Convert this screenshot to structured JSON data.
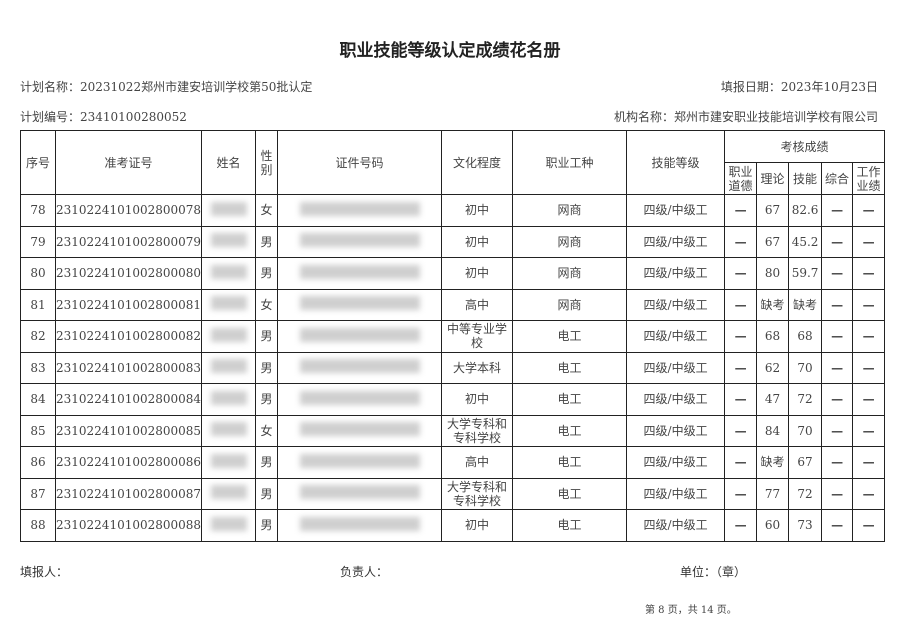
{
  "title": "职业技能等级认定成绩花名册",
  "plan_name": "计划名称：20231022郑州市建安培训学校第50批认定",
  "fill_date": "填报日期：2023年10月23日",
  "plan_no": "计划编号：23410100280052",
  "org_name": "机构名称：郑州市建安职业技能培训学校有限公司",
  "headers": {
    "seq": "序号",
    "exam_no": "准考证号",
    "name": "姓名",
    "gender": "性别",
    "id_no": "证件号码",
    "education": "文化程度",
    "occupation": "职业工种",
    "level": "技能等级",
    "scores": "考核成绩",
    "ethics": "职业道德",
    "theory": "理论",
    "skill": "技能",
    "overall": "综合",
    "performance": "工作业绩"
  },
  "rows": [
    {
      "seq": "78",
      "exam_no": "2310224101002800078",
      "gender": "女",
      "education": "初中",
      "occupation": "网商",
      "level": "四级/中级工",
      "ethics": "—",
      "theory": "67",
      "skill": "82.6",
      "overall": "—",
      "performance": "—"
    },
    {
      "seq": "79",
      "exam_no": "2310224101002800079",
      "gender": "男",
      "education": "初中",
      "occupation": "网商",
      "level": "四级/中级工",
      "ethics": "—",
      "theory": "67",
      "skill": "45.2",
      "overall": "—",
      "performance": "—"
    },
    {
      "seq": "80",
      "exam_no": "2310224101002800080",
      "gender": "男",
      "education": "初中",
      "occupation": "网商",
      "level": "四级/中级工",
      "ethics": "—",
      "theory": "80",
      "skill": "59.7",
      "overall": "—",
      "performance": "—"
    },
    {
      "seq": "81",
      "exam_no": "2310224101002800081",
      "gender": "女",
      "education": "高中",
      "occupation": "网商",
      "level": "四级/中级工",
      "ethics": "—",
      "theory": "缺考",
      "skill": "缺考",
      "overall": "—",
      "performance": "—"
    },
    {
      "seq": "82",
      "exam_no": "2310224101002800082",
      "gender": "男",
      "education": "中等专业学校",
      "occupation": "电工",
      "level": "四级/中级工",
      "ethics": "—",
      "theory": "68",
      "skill": "68",
      "overall": "—",
      "performance": "—"
    },
    {
      "seq": "83",
      "exam_no": "2310224101002800083",
      "gender": "男",
      "education": "大学本科",
      "occupation": "电工",
      "level": "四级/中级工",
      "ethics": "—",
      "theory": "62",
      "skill": "70",
      "overall": "—",
      "performance": "—"
    },
    {
      "seq": "84",
      "exam_no": "2310224101002800084",
      "gender": "男",
      "education": "初中",
      "occupation": "电工",
      "level": "四级/中级工",
      "ethics": "—",
      "theory": "47",
      "skill": "72",
      "overall": "—",
      "performance": "—"
    },
    {
      "seq": "85",
      "exam_no": "2310224101002800085",
      "gender": "女",
      "education": "大学专科和专科学校",
      "occupation": "电工",
      "level": "四级/中级工",
      "ethics": "—",
      "theory": "84",
      "skill": "70",
      "overall": "—",
      "performance": "—"
    },
    {
      "seq": "86",
      "exam_no": "2310224101002800086",
      "gender": "男",
      "education": "高中",
      "occupation": "电工",
      "level": "四级/中级工",
      "ethics": "—",
      "theory": "缺考",
      "skill": "67",
      "overall": "—",
      "performance": "—"
    },
    {
      "seq": "87",
      "exam_no": "2310224101002800087",
      "gender": "男",
      "education": "大学专科和专科学校",
      "occupation": "电工",
      "level": "四级/中级工",
      "ethics": "—",
      "theory": "77",
      "skill": "72",
      "overall": "—",
      "performance": "—"
    },
    {
      "seq": "88",
      "exam_no": "2310224101002800088",
      "gender": "男",
      "education": "初中",
      "occupation": "电工",
      "level": "四级/中级工",
      "ethics": "—",
      "theory": "60",
      "skill": "73",
      "overall": "—",
      "performance": "—"
    }
  ],
  "footer": {
    "filler": "填报人：",
    "responsible": "负责人：",
    "unit": "单位：（章）",
    "page": "第 8 页，共 14 页。"
  }
}
